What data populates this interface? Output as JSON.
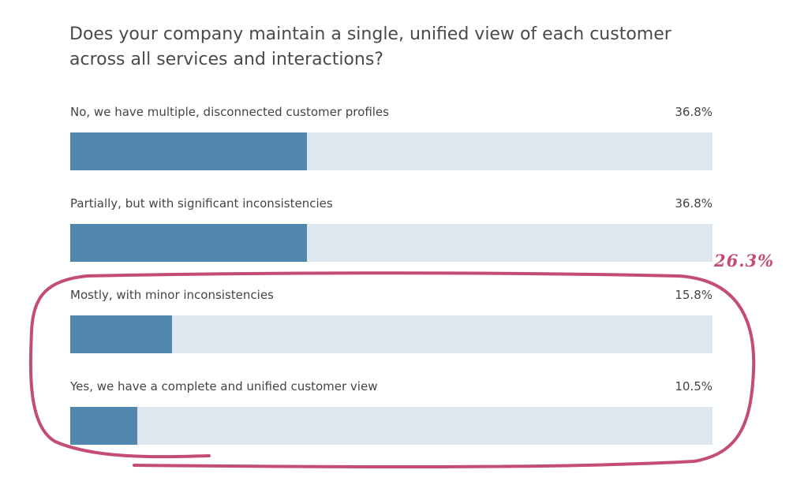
{
  "chart_data": {
    "type": "bar",
    "orientation": "horizontal",
    "title": "Does your company maintain a single, unified view of each customer across all services and interactions?",
    "categories": [
      "No, we have multiple, disconnected customer profiles",
      "Partially, but with significant inconsistencies",
      "Mostly, with minor inconsistencies",
      "Yes, we have a complete and unified customer view"
    ],
    "values": [
      36.8,
      36.8,
      15.8,
      10.5
    ],
    "value_labels": [
      "36.8%",
      "36.8%",
      "15.8%",
      "10.5%"
    ],
    "xlim": [
      0,
      100
    ],
    "annotation": "26.3%",
    "colors": {
      "bar": "#5288ae",
      "track": "#dce7f0",
      "annotation": "#c44d74"
    }
  }
}
